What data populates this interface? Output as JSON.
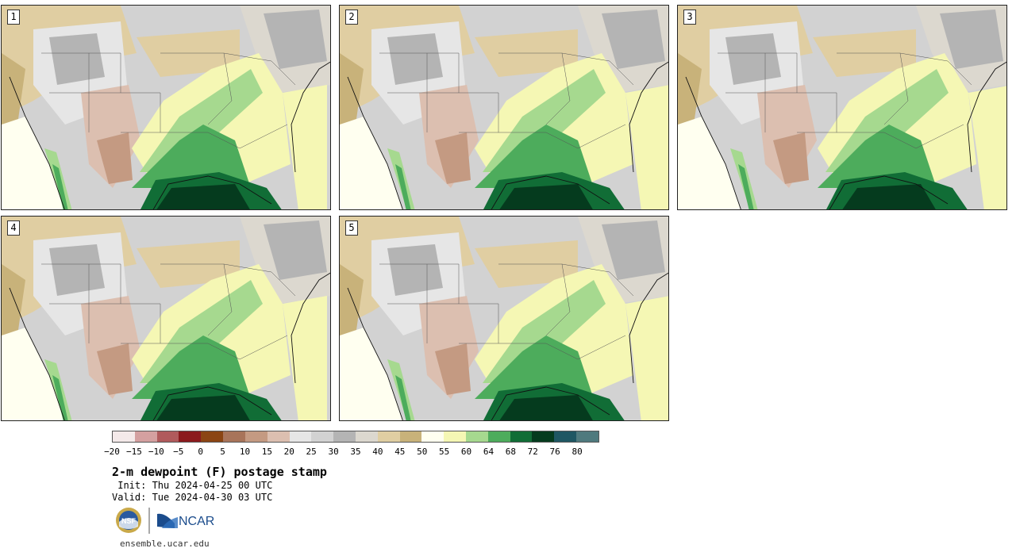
{
  "panels": [
    {
      "label": "1"
    },
    {
      "label": "2"
    },
    {
      "label": "3"
    },
    {
      "label": "4"
    },
    {
      "label": "5"
    }
  ],
  "colorbar": {
    "colors": [
      "#f4e9e9",
      "#d4a0a0",
      "#b05a5c",
      "#8b1a1d",
      "#8b4513",
      "#a8745a",
      "#c49a82",
      "#dcbfb0",
      "#e6e6e6",
      "#d2d2d2",
      "#b4b4b4",
      "#dcd8cf",
      "#e0cea2",
      "#c8b27a",
      "#fffff0",
      "#f5f7b4",
      "#a6d98f",
      "#4dac5c",
      "#116d36",
      "#053b1e",
      "#1f5763",
      "#4f7a7e"
    ],
    "ticks": [
      "−20",
      "−15",
      "−10",
      "−5",
      "0",
      "5",
      "10",
      "15",
      "20",
      "25",
      "30",
      "35",
      "40",
      "45",
      "50",
      "55",
      "60",
      "64",
      "68",
      "72",
      "76",
      "80"
    ]
  },
  "title": "2-m dewpoint (F) postage stamp",
  "init": " Init: Thu 2024-04-25 00 UTC",
  "valid": "Valid: Tue 2024-04-30 03 UTC",
  "logos": {
    "nsf": "NSF",
    "ncar": "NCAR"
  },
  "website": "ensemble.ucar.edu"
}
